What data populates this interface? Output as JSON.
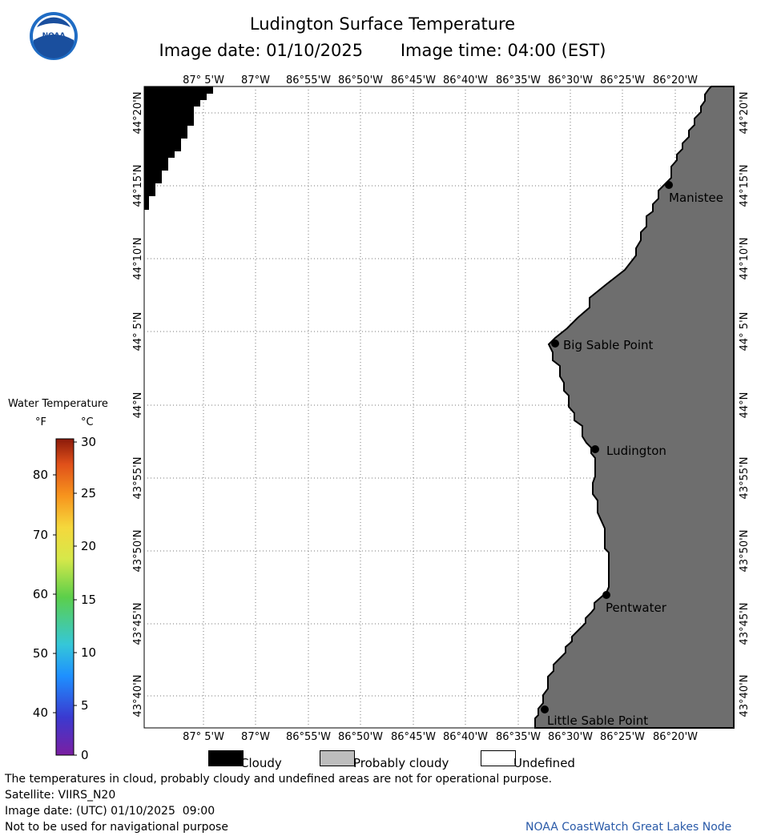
{
  "logo": {
    "text": "NOAA",
    "icon": "noaa-logo-icon"
  },
  "title": "Ludington Surface Temperature",
  "image_date": "Image date: 01/10/2025",
  "image_time": "Image time: 04:00 (EST)",
  "longitude_labels": [
    "87° 5'W",
    "87°W",
    "86°55'W",
    "86°50'W",
    "86°45'W",
    "86°40'W",
    "86°35'W",
    "86°30'W",
    "86°25'W",
    "86°20'W"
  ],
  "latitude_labels": [
    "44°20'N",
    "44°15'N",
    "44°10'N",
    "44° 5'N",
    "44°N",
    "43°55'N",
    "43°50'N",
    "43°45'N",
    "43°40'N"
  ],
  "places": [
    {
      "name": "Manistee"
    },
    {
      "name": "Big Sable Point"
    },
    {
      "name": "Ludington"
    },
    {
      "name": "Pentwater"
    },
    {
      "name": "Little Sable Point"
    }
  ],
  "colorbar": {
    "title": "Water Temperature",
    "unit_f": "°F",
    "unit_c": "°C",
    "f_ticks": [
      "40",
      "50",
      "60",
      "70",
      "80"
    ],
    "c_ticks": [
      "0",
      "5",
      "10",
      "15",
      "20",
      "25",
      "30"
    ]
  },
  "legend": {
    "cloudy": "Cloudy",
    "probably_cloudy": "Probably cloudy",
    "undefined": "Undefined",
    "colors": {
      "cloudy": "#000000",
      "probably_cloudy": "#bdbdbd",
      "undefined": "#ffffff",
      "land": "#6e6e6e"
    }
  },
  "footer": {
    "disclaimer": "The temperatures in cloud, probably cloudy and undefined areas are not for operational purpose.",
    "satellite": "Satellite: VIIRS_N20",
    "utc_date": "Image date: (UTC) 01/10/2025  09:00",
    "nav_warning": "Not to be used for navigational purpose",
    "credit": "NOAA CoastWatch Great Lakes Node"
  }
}
